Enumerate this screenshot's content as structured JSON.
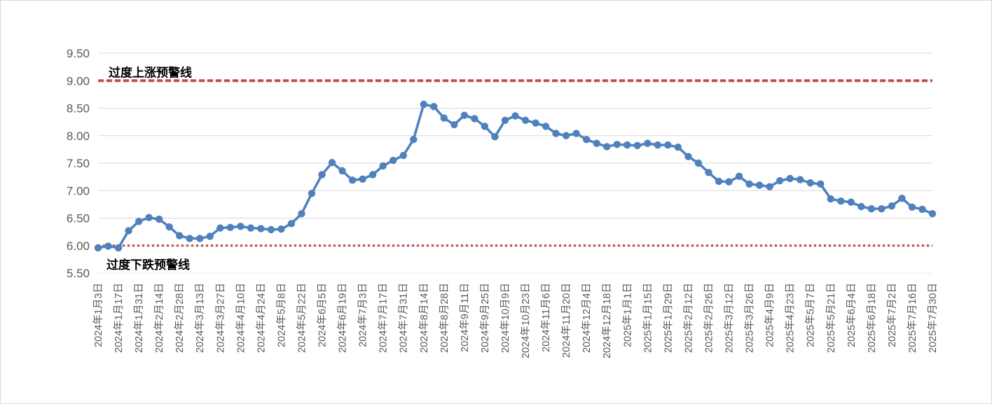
{
  "chart_data": {
    "type": "line",
    "title": "",
    "xlabel": "",
    "ylabel": "",
    "ylim": [
      5.5,
      9.5
    ],
    "yticks": [
      "5.50",
      "6.00",
      "6.50",
      "7.00",
      "7.50",
      "8.00",
      "8.50",
      "9.00",
      "9.50"
    ],
    "grid": true,
    "legend": "none",
    "x_tick_labels": [
      "2024年1月3日",
      "2024年1月17日",
      "2024年1月31日",
      "2024年2月14日",
      "2024年2月28日",
      "2024年3月13日",
      "2024年3月27日",
      "2024年4月10日",
      "2024年4月24日",
      "2024年5月8日",
      "2024年5月22日",
      "2024年6月5日",
      "2024年6月19日",
      "2024年7月3日",
      "2024年7月17日",
      "2024年7月31日",
      "2024年8月14日",
      "2024年8月28日",
      "2024年9月11日",
      "2024年9月25日",
      "2024年10月9日",
      "2024年10月23日",
      "2024年11月6日",
      "2024年11月20日",
      "2024年12月4日",
      "2024年12月18日",
      "2025年1月1日",
      "2025年1月15日",
      "2025年1月29日",
      "2025年2月12日",
      "2025年2月26日",
      "2025年3月12日",
      "2025年3月26日",
      "2025年4月9日",
      "2025年4月23日",
      "2025年5月7日",
      "2025年5月21日",
      "2025年6月4日",
      "2025年6月18日",
      "2025年7月2日",
      "2025年7月16日",
      "2025年7月30日"
    ],
    "x": [
      "2024-01-03",
      "2024-01-10",
      "2024-01-17",
      "2024-01-24",
      "2024-01-31",
      "2024-02-07",
      "2024-02-14",
      "2024-02-21",
      "2024-02-28",
      "2024-03-06",
      "2024-03-13",
      "2024-03-20",
      "2024-03-27",
      "2024-04-03",
      "2024-04-10",
      "2024-04-17",
      "2024-04-24",
      "2024-05-01",
      "2024-05-08",
      "2024-05-15",
      "2024-05-22",
      "2024-05-29",
      "2024-06-05",
      "2024-06-12",
      "2024-06-19",
      "2024-06-26",
      "2024-07-03",
      "2024-07-10",
      "2024-07-17",
      "2024-07-24",
      "2024-07-31",
      "2024-08-07",
      "2024-08-14",
      "2024-08-21",
      "2024-08-28",
      "2024-09-04",
      "2024-09-11",
      "2024-09-18",
      "2024-09-25",
      "2024-10-02",
      "2024-10-09",
      "2024-10-16",
      "2024-10-23",
      "2024-10-30",
      "2024-11-06",
      "2024-11-13",
      "2024-11-20",
      "2024-11-27",
      "2024-12-04",
      "2024-12-11",
      "2024-12-18",
      "2024-12-25",
      "2025-01-01",
      "2025-01-08",
      "2025-01-15",
      "2025-01-22",
      "2025-01-29",
      "2025-02-05",
      "2025-02-12",
      "2025-02-19",
      "2025-02-26",
      "2025-03-05",
      "2025-03-12",
      "2025-03-19",
      "2025-03-26",
      "2025-04-02",
      "2025-04-09",
      "2025-04-16",
      "2025-04-23",
      "2025-04-30",
      "2025-05-07",
      "2025-05-14",
      "2025-05-21",
      "2025-05-28",
      "2025-06-04",
      "2025-06-11",
      "2025-06-18",
      "2025-06-25",
      "2025-07-02",
      "2025-07-09",
      "2025-07-16",
      "2025-07-23",
      "2025-07-30"
    ],
    "series": [
      {
        "color": "#4f81bd",
        "values": [
          5.96,
          5.99,
          5.96,
          6.27,
          6.44,
          6.51,
          6.48,
          6.34,
          6.18,
          6.13,
          6.13,
          6.17,
          6.32,
          6.33,
          6.35,
          6.32,
          6.31,
          6.29,
          6.3,
          6.4,
          6.58,
          6.95,
          7.29,
          7.51,
          7.36,
          7.19,
          7.21,
          7.29,
          7.45,
          7.55,
          7.64,
          7.93,
          8.57,
          8.53,
          8.32,
          8.2,
          8.37,
          8.31,
          8.17,
          7.98,
          8.28,
          8.36,
          8.28,
          8.23,
          8.17,
          8.04,
          8.0,
          8.04,
          7.93,
          7.86,
          7.8,
          7.84,
          7.83,
          7.82,
          7.86,
          7.83,
          7.83,
          7.79,
          7.62,
          7.5,
          7.33,
          7.17,
          7.16,
          7.26,
          7.12,
          7.1,
          7.07,
          7.18,
          7.22,
          7.2,
          7.14,
          7.12,
          6.85,
          6.81,
          6.79,
          6.71,
          6.67,
          6.67,
          6.72,
          6.86,
          6.7,
          6.66,
          6.58
        ]
      }
    ],
    "reference_lines": [
      {
        "label": "过度上涨预警线",
        "value": 9.0,
        "color": "#c0504d",
        "style": "dashed"
      },
      {
        "label": "过度下跌预警线",
        "value": 6.0,
        "color": "#c0504d",
        "style": "dotted"
      }
    ]
  }
}
